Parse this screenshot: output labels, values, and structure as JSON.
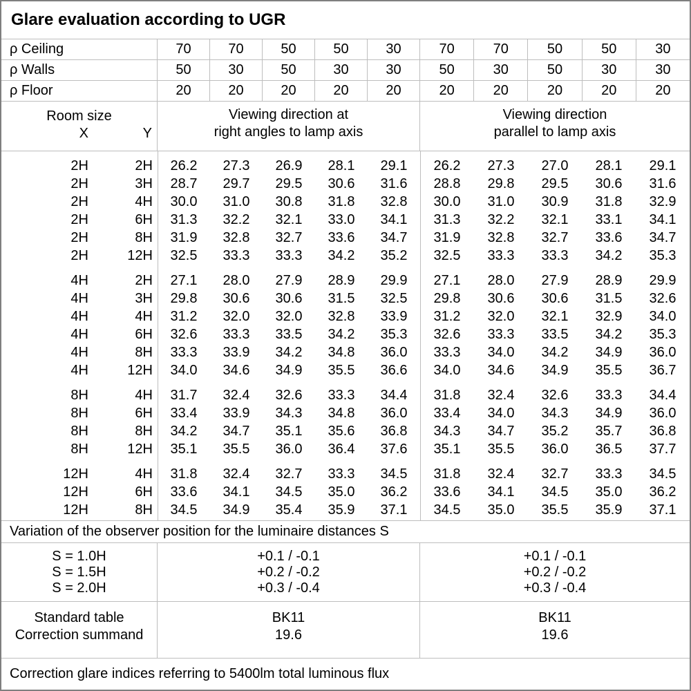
{
  "title": "Glare evaluation according to UGR",
  "reflectance_rows": [
    {
      "label": "ρ Ceiling",
      "values": [
        "70",
        "70",
        "50",
        "50",
        "30",
        "70",
        "70",
        "50",
        "50",
        "30"
      ]
    },
    {
      "label": "ρ Walls",
      "values": [
        "50",
        "30",
        "50",
        "30",
        "30",
        "50",
        "30",
        "50",
        "30",
        "30"
      ]
    },
    {
      "label": "ρ Floor",
      "values": [
        "20",
        "20",
        "20",
        "20",
        "20",
        "20",
        "20",
        "20",
        "20",
        "20"
      ]
    }
  ],
  "room_size_header": {
    "title": "Room size",
    "x": "X",
    "y": "Y"
  },
  "viewing_headers": {
    "right_angles_line1": "Viewing direction at",
    "right_angles_line2": "right angles to lamp axis",
    "parallel_line1": "Viewing direction",
    "parallel_line2": "parallel to lamp axis"
  },
  "ugr_blocks": [
    {
      "rows": [
        {
          "x": "2H",
          "y": "2H",
          "right_angles": [
            "26.2",
            "27.3",
            "26.9",
            "28.1",
            "29.1"
          ],
          "parallel": [
            "26.2",
            "27.3",
            "27.0",
            "28.1",
            "29.1"
          ]
        },
        {
          "x": "2H",
          "y": "3H",
          "right_angles": [
            "28.7",
            "29.7",
            "29.5",
            "30.6",
            "31.6"
          ],
          "parallel": [
            "28.8",
            "29.8",
            "29.5",
            "30.6",
            "31.6"
          ]
        },
        {
          "x": "2H",
          "y": "4H",
          "right_angles": [
            "30.0",
            "31.0",
            "30.8",
            "31.8",
            "32.8"
          ],
          "parallel": [
            "30.0",
            "31.0",
            "30.9",
            "31.8",
            "32.9"
          ]
        },
        {
          "x": "2H",
          "y": "6H",
          "right_angles": [
            "31.3",
            "32.2",
            "32.1",
            "33.0",
            "34.1"
          ],
          "parallel": [
            "31.3",
            "32.2",
            "32.1",
            "33.1",
            "34.1"
          ]
        },
        {
          "x": "2H",
          "y": "8H",
          "right_angles": [
            "31.9",
            "32.8",
            "32.7",
            "33.6",
            "34.7"
          ],
          "parallel": [
            "31.9",
            "32.8",
            "32.7",
            "33.6",
            "34.7"
          ]
        },
        {
          "x": "2H",
          "y": "12H",
          "right_angles": [
            "32.5",
            "33.3",
            "33.3",
            "34.2",
            "35.2"
          ],
          "parallel": [
            "32.5",
            "33.3",
            "33.3",
            "34.2",
            "35.3"
          ]
        }
      ]
    },
    {
      "rows": [
        {
          "x": "4H",
          "y": "2H",
          "right_angles": [
            "27.1",
            "28.0",
            "27.9",
            "28.9",
            "29.9"
          ],
          "parallel": [
            "27.1",
            "28.0",
            "27.9",
            "28.9",
            "29.9"
          ]
        },
        {
          "x": "4H",
          "y": "3H",
          "right_angles": [
            "29.8",
            "30.6",
            "30.6",
            "31.5",
            "32.5"
          ],
          "parallel": [
            "29.8",
            "30.6",
            "30.6",
            "31.5",
            "32.6"
          ]
        },
        {
          "x": "4H",
          "y": "4H",
          "right_angles": [
            "31.2",
            "32.0",
            "32.0",
            "32.8",
            "33.9"
          ],
          "parallel": [
            "31.2",
            "32.0",
            "32.1",
            "32.9",
            "34.0"
          ]
        },
        {
          "x": "4H",
          "y": "6H",
          "right_angles": [
            "32.6",
            "33.3",
            "33.5",
            "34.2",
            "35.3"
          ],
          "parallel": [
            "32.6",
            "33.3",
            "33.5",
            "34.2",
            "35.3"
          ]
        },
        {
          "x": "4H",
          "y": "8H",
          "right_angles": [
            "33.3",
            "33.9",
            "34.2",
            "34.8",
            "36.0"
          ],
          "parallel": [
            "33.3",
            "34.0",
            "34.2",
            "34.9",
            "36.0"
          ]
        },
        {
          "x": "4H",
          "y": "12H",
          "right_angles": [
            "34.0",
            "34.6",
            "34.9",
            "35.5",
            "36.6"
          ],
          "parallel": [
            "34.0",
            "34.6",
            "34.9",
            "35.5",
            "36.7"
          ]
        }
      ]
    },
    {
      "rows": [
        {
          "x": "8H",
          "y": "4H",
          "right_angles": [
            "31.7",
            "32.4",
            "32.6",
            "33.3",
            "34.4"
          ],
          "parallel": [
            "31.8",
            "32.4",
            "32.6",
            "33.3",
            "34.4"
          ]
        },
        {
          "x": "8H",
          "y": "6H",
          "right_angles": [
            "33.4",
            "33.9",
            "34.3",
            "34.8",
            "36.0"
          ],
          "parallel": [
            "33.4",
            "34.0",
            "34.3",
            "34.9",
            "36.0"
          ]
        },
        {
          "x": "8H",
          "y": "8H",
          "right_angles": [
            "34.2",
            "34.7",
            "35.1",
            "35.6",
            "36.8"
          ],
          "parallel": [
            "34.3",
            "34.7",
            "35.2",
            "35.7",
            "36.8"
          ]
        },
        {
          "x": "8H",
          "y": "12H",
          "right_angles": [
            "35.1",
            "35.5",
            "36.0",
            "36.4",
            "37.6"
          ],
          "parallel": [
            "35.1",
            "35.5",
            "36.0",
            "36.5",
            "37.7"
          ]
        }
      ]
    },
    {
      "rows": [
        {
          "x": "12H",
          "y": "4H",
          "right_angles": [
            "31.8",
            "32.4",
            "32.7",
            "33.3",
            "34.5"
          ],
          "parallel": [
            "31.8",
            "32.4",
            "32.7",
            "33.3",
            "34.5"
          ]
        },
        {
          "x": "12H",
          "y": "6H",
          "right_angles": [
            "33.6",
            "34.1",
            "34.5",
            "35.0",
            "36.2"
          ],
          "parallel": [
            "33.6",
            "34.1",
            "34.5",
            "35.0",
            "36.2"
          ]
        },
        {
          "x": "12H",
          "y": "8H",
          "right_angles": [
            "34.5",
            "34.9",
            "35.4",
            "35.9",
            "37.1"
          ],
          "parallel": [
            "34.5",
            "35.0",
            "35.5",
            "35.9",
            "37.1"
          ]
        }
      ]
    }
  ],
  "variation_note": "Variation of the observer position for the luminaire distances S",
  "variation": {
    "s_labels": [
      "S = 1.0H",
      "S = 1.5H",
      "S = 2.0H"
    ],
    "right_angles_values": [
      "+0.1 / -0.1",
      "+0.2 / -0.2",
      "+0.3 / -0.4"
    ],
    "parallel_values": [
      "+0.1 / -0.1",
      "+0.2 / -0.2",
      "+0.3 / -0.4"
    ]
  },
  "summary": {
    "labels": [
      "Standard table",
      "Correction summand"
    ],
    "right_angles_values": [
      "BK11",
      "19.6"
    ],
    "parallel_values": [
      "BK11",
      "19.6"
    ]
  },
  "footer_note": "Correction glare indices referring to 5400lm total luminous flux",
  "colors": {
    "background": "#ffffff",
    "text": "#000000",
    "grid_line": "#bdbdbd",
    "outer_border": "#7f7f7f"
  }
}
